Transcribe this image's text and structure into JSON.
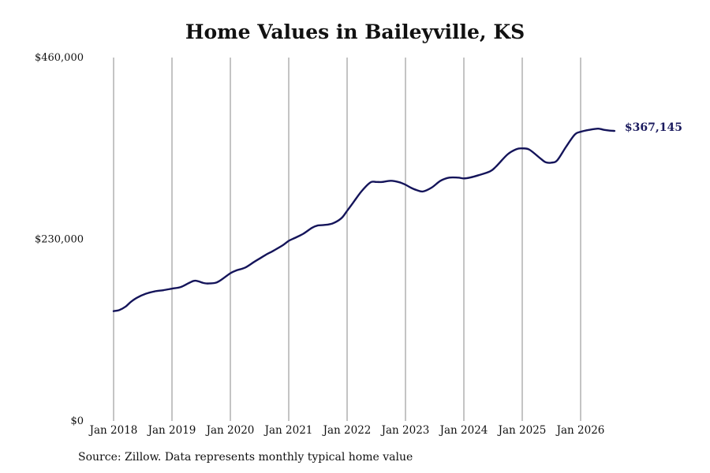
{
  "title": "Home Values in Baileyville, KS",
  "source": "Source: Zillow. Data represents monthly typical home value",
  "colors": {
    "line": "#14145a",
    "grid": "#8a8a8a",
    "label": "#1a1a5e"
  },
  "chart_data": {
    "type": "line",
    "title": "Home Values in Baileyville, KS",
    "xlabel": "",
    "ylabel": "",
    "ylim": [
      0,
      460000
    ],
    "y_ticks": [
      {
        "value": 0,
        "label": "$0"
      },
      {
        "value": 230000,
        "label": "$230,000"
      },
      {
        "value": 460000,
        "label": "$460,000"
      }
    ],
    "x_ticks": [
      {
        "value": 2018.0,
        "label": "Jan 2018"
      },
      {
        "value": 2019.0,
        "label": "Jan 2019"
      },
      {
        "value": 2020.0,
        "label": "Jan 2020"
      },
      {
        "value": 2021.0,
        "label": "Jan 2021"
      },
      {
        "value": 2022.0,
        "label": "Jan 2022"
      },
      {
        "value": 2023.0,
        "label": "Jan 2023"
      },
      {
        "value": 2024.0,
        "label": "Jan 2024"
      },
      {
        "value": 2025.0,
        "label": "Jan 2025"
      },
      {
        "value": 2026.0,
        "label": "Jan 2026"
      }
    ],
    "xlim": [
      2018.0,
      2026.58
    ],
    "grid": "vertical",
    "end_label": "$367,145",
    "series": [
      {
        "x": [
          2018.0,
          2018.1,
          2018.2,
          2018.3,
          2018.4,
          2018.55,
          2018.7,
          2018.85,
          2019.0,
          2019.15,
          2019.3,
          2019.4,
          2019.55,
          2019.62,
          2019.75,
          2019.85,
          2020.0,
          2020.1,
          2020.25,
          2020.4,
          2020.5,
          2020.6,
          2020.75,
          2020.9,
          2021.0,
          2021.1,
          2021.25,
          2021.4,
          2021.5,
          2021.6,
          2021.75,
          2021.9,
          2022.0,
          2022.1,
          2022.25,
          2022.4,
          2022.5,
          2022.6,
          2022.75,
          2022.9,
          2023.0,
          2023.1,
          2023.2,
          2023.3,
          2023.45,
          2023.6,
          2023.75,
          2023.9,
          2024.0,
          2024.1,
          2024.25,
          2024.45,
          2024.55,
          2024.75,
          2024.9,
          2025.0,
          2025.12,
          2025.3,
          2025.4,
          2025.5,
          2025.6,
          2025.75,
          2025.9,
          2026.0,
          2026.15,
          2026.3,
          2026.4,
          2026.5,
          2026.58
        ],
        "values": [
          139000,
          140500,
          144500,
          151000,
          156000,
          161000,
          164000,
          165500,
          167500,
          169500,
          175000,
          177500,
          174500,
          174000,
          175000,
          179000,
          187000,
          190500,
          194000,
          201000,
          205500,
          210000,
          216000,
          222500,
          228000,
          231500,
          237000,
          244500,
          247500,
          248000,
          250000,
          256500,
          266000,
          276000,
          291000,
          302000,
          302500,
          302500,
          304000,
          302000,
          299000,
          295000,
          292000,
          290500,
          295500,
          304000,
          308000,
          308000,
          307000,
          308000,
          311000,
          316000,
          322000,
          337500,
          344000,
          345000,
          343500,
          333000,
          327500,
          327000,
          330000,
          347000,
          362500,
          366000,
          368500,
          370000,
          368500,
          367500,
          367145
        ]
      }
    ]
  }
}
